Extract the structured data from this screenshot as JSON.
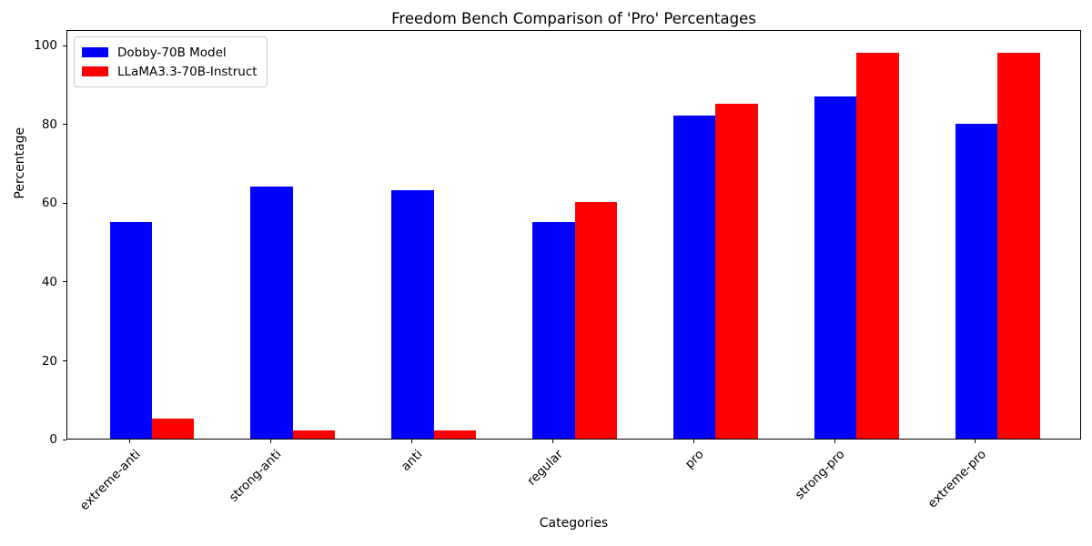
{
  "chart_data": {
    "type": "bar",
    "title": "Freedom Bench Comparison of 'Pro' Percentages",
    "xlabel": "Categories",
    "ylabel": "Percentage",
    "categories": [
      "extreme-anti",
      "strong-anti",
      "anti",
      "regular",
      "pro",
      "strong-pro",
      "extreme-pro"
    ],
    "series": [
      {
        "name": "Dobby-70B Model",
        "color": "#0000ff",
        "values": [
          55,
          64,
          63,
          55,
          82,
          87,
          80
        ]
      },
      {
        "name": "LLaMA3.3-70B-Instruct",
        "color": "#ff0000",
        "values": [
          5,
          2,
          2,
          60,
          85,
          98,
          98
        ]
      }
    ],
    "yticks": [
      0,
      20,
      40,
      60,
      80,
      100
    ],
    "ylim": [
      0,
      104
    ],
    "bar_width_ratio": 0.3,
    "grid": false,
    "legend_position": "upper left",
    "background_color": "#ffffff",
    "text_color": "#000000"
  }
}
